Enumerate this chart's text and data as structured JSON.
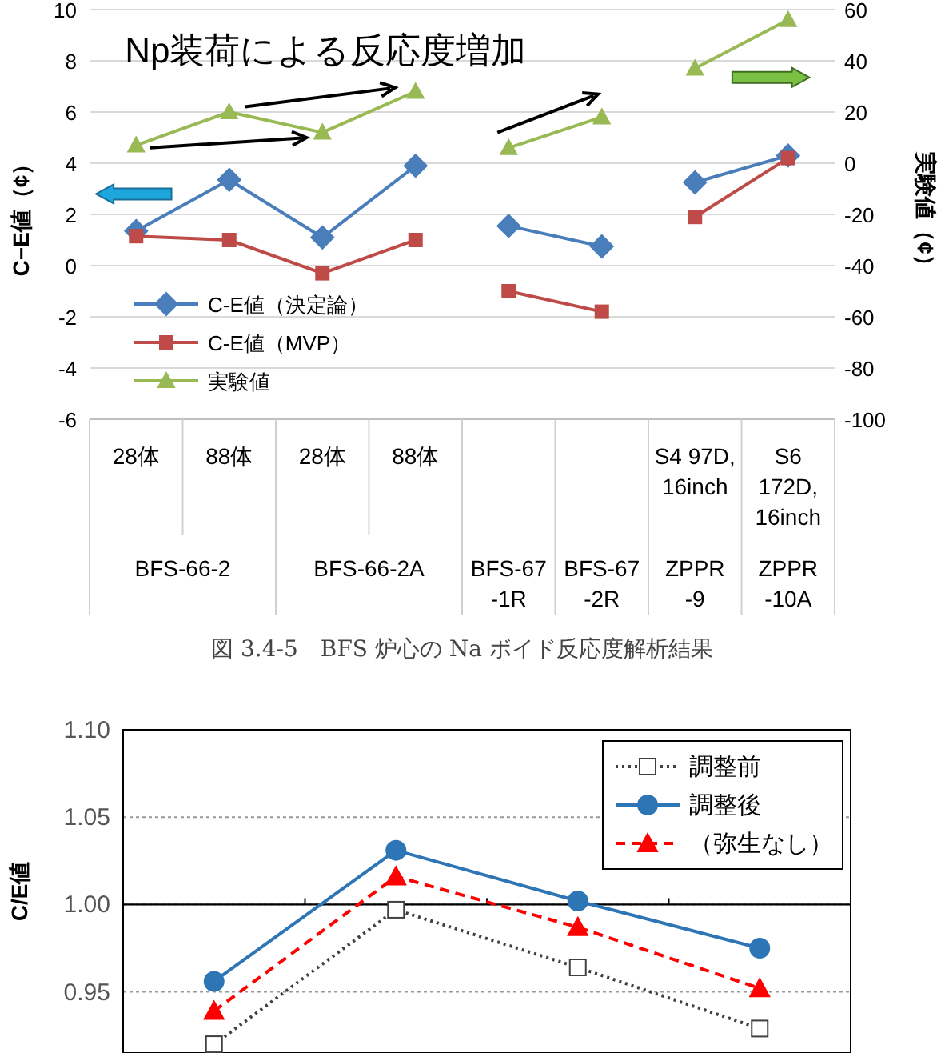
{
  "chart_data": [
    {
      "type": "line",
      "categories": [
        "28体",
        "88体",
        "28体",
        "88体",
        null,
        null,
        "S4 97D,\n16inch",
        "S6\n172D,\n16inch"
      ],
      "ylabel": "C−E値（¢）",
      "y2label": "実験値（¢）",
      "ylim": [
        -6,
        10
      ],
      "yticks": [
        -6,
        -4,
        -2,
        0,
        2,
        4,
        6,
        8,
        10
      ],
      "y2lim": [
        -100,
        60
      ],
      "y2ticks": [
        -100,
        -80,
        -60,
        -40,
        -20,
        0,
        20,
        40,
        60
      ],
      "grid": "y",
      "legend": "bottom left",
      "annotations": [
        "Np装荷による反応度増加",
        "BFS-66-2",
        "BFS-66-2A",
        "BFS-67\n-1R",
        "BFS-67\n-2R",
        "ZPPR\n-9",
        "ZPPR\n-10A",
        "図 3.4-5　BFS 炉心の Na ボイド反応度解析結果"
      ],
      "series": [
        {
          "name": "C-E値（決定論）",
          "color": "#4a7ebb",
          "marker": "diamond",
          "values": [
            1.35,
            3.35,
            1.1,
            3.9,
            null,
            null,
            null,
            null
          ]
        },
        {
          "name": "C-E値（MVP）",
          "color": "#be4b48",
          "marker": "square",
          "values": [
            1.15,
            1.0,
            -0.3,
            1.0,
            null,
            null,
            null,
            null
          ]
        },
        {
          "name": "実験値",
          "color": "#98b954",
          "marker": "triangle",
          "axis": "y2",
          "values": [
            7,
            20,
            12,
            28,
            null,
            null,
            null,
            null
          ]
        },
        {
          "color": "#4a7ebb",
          "marker": "diamond",
          "values": [
            null,
            null,
            null,
            null,
            1.55,
            0.75,
            null,
            null
          ]
        },
        {
          "color": "#4a7ebb",
          "marker": "diamond",
          "values": [
            null,
            null,
            null,
            null,
            null,
            null,
            3.25,
            4.3
          ]
        },
        {
          "color": "#be4b48",
          "marker": "square",
          "values": [
            null,
            null,
            null,
            null,
            -1.0,
            -1.8,
            null,
            null
          ]
        },
        {
          "color": "#be4b48",
          "marker": "square",
          "values": [
            null,
            null,
            null,
            null,
            null,
            null,
            1.9,
            4.2
          ]
        },
        {
          "color": "#98b954",
          "marker": "triangle",
          "axis": "y2",
          "values": [
            null,
            null,
            null,
            null,
            6,
            18,
            null,
            null
          ]
        },
        {
          "color": "#98b954",
          "marker": "triangle",
          "axis": "y2",
          "values": [
            null,
            null,
            null,
            null,
            null,
            null,
            37,
            56
          ]
        }
      ]
    },
    {
      "type": "line",
      "categories": [
        null,
        null,
        null,
        null
      ],
      "ylabel": "C/E値",
      "ylim": [
        0.915,
        1.1
      ],
      "yticks": [
        0.95,
        {
          "value": 1,
          "label": "1.00"
        },
        1.05,
        {
          "value": 1.1,
          "label": "1.10"
        }
      ],
      "tick_labels": "y",
      "grid": "y",
      "legend": "top right",
      "ref_lines": [
        {
          "axis": "y",
          "value": 1,
          "color": "#000000"
        }
      ],
      "series": [
        {
          "name": "調整前",
          "color": "#404040",
          "marker": "square",
          "line_style": "dotted",
          "values": [
            0.92,
            0.997,
            0.964,
            0.929
          ]
        },
        {
          "name": "調整後",
          "color": "#2e75b6",
          "marker": "circle",
          "line_style": "solid",
          "values": [
            0.956,
            1.031,
            1.002,
            0.975
          ]
        },
        {
          "name": "（弥生なし）",
          "color": "#ff0000",
          "marker": "triangle",
          "line_style": "dashed",
          "values": [
            0.939,
            1.016,
            0.987,
            0.952
          ]
        }
      ]
    }
  ]
}
